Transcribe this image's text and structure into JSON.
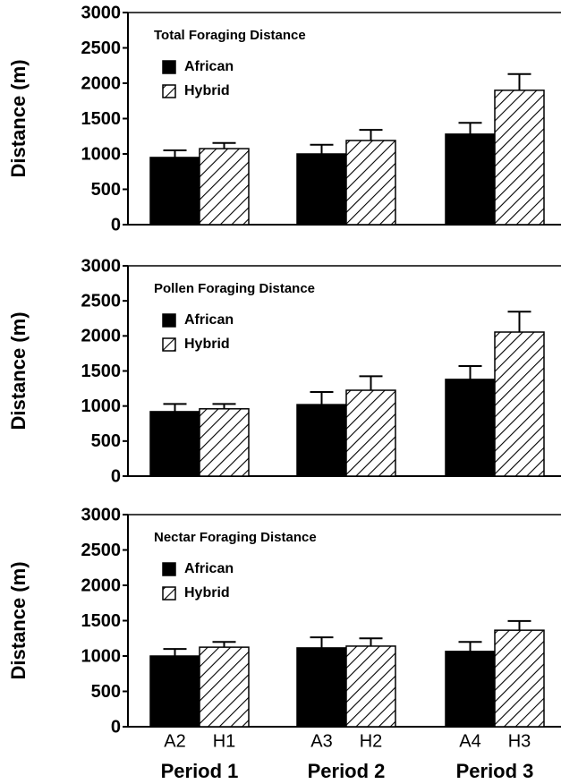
{
  "chart_data": [
    {
      "type": "bar",
      "title": "Total Foraging Distance",
      "y_label": "Distance (m)",
      "ylim": [
        0,
        3000
      ],
      "yticks": [
        0,
        500,
        1000,
        1500,
        2000,
        2500,
        3000
      ],
      "series": [
        {
          "name": "African",
          "color": "#000000",
          "pattern": "solid",
          "values": [
            950,
            1000,
            1280
          ],
          "errors": [
            100,
            130,
            160
          ]
        },
        {
          "name": "Hybrid",
          "color": "#000000",
          "pattern": "hatch",
          "values": [
            1075,
            1190,
            1900
          ],
          "errors": [
            80,
            150,
            230
          ]
        }
      ]
    },
    {
      "type": "bar",
      "title": "Pollen Foraging Distance",
      "y_label": "Distance (m)",
      "ylim": [
        0,
        3000
      ],
      "yticks": [
        0,
        500,
        1000,
        1500,
        2000,
        2500,
        3000
      ],
      "series": [
        {
          "name": "African",
          "color": "#000000",
          "pattern": "solid",
          "values": [
            920,
            1020,
            1380
          ],
          "errors": [
            110,
            180,
            190
          ]
        },
        {
          "name": "Hybrid",
          "color": "#000000",
          "pattern": "hatch",
          "values": [
            960,
            1225,
            2055
          ],
          "errors": [
            70,
            200,
            290
          ]
        }
      ]
    },
    {
      "type": "bar",
      "title": "Nectar Foraging Distance",
      "y_label": "Distance (m)",
      "ylim": [
        0,
        3000
      ],
      "yticks": [
        0,
        500,
        1000,
        1500,
        2000,
        2500,
        3000
      ],
      "categories": [
        "Period 1",
        "Period 2",
        "Period 3"
      ],
      "bar_labels": [
        [
          "A2",
          "H1"
        ],
        [
          "A3",
          "H2"
        ],
        [
          "A4",
          "H3"
        ]
      ],
      "series": [
        {
          "name": "African",
          "color": "#000000",
          "pattern": "solid",
          "values": [
            1000,
            1115,
            1065
          ],
          "errors": [
            100,
            150,
            135
          ]
        },
        {
          "name": "Hybrid",
          "color": "#000000",
          "pattern": "hatch",
          "values": [
            1125,
            1140,
            1365
          ],
          "errors": [
            75,
            110,
            130
          ]
        }
      ]
    }
  ]
}
